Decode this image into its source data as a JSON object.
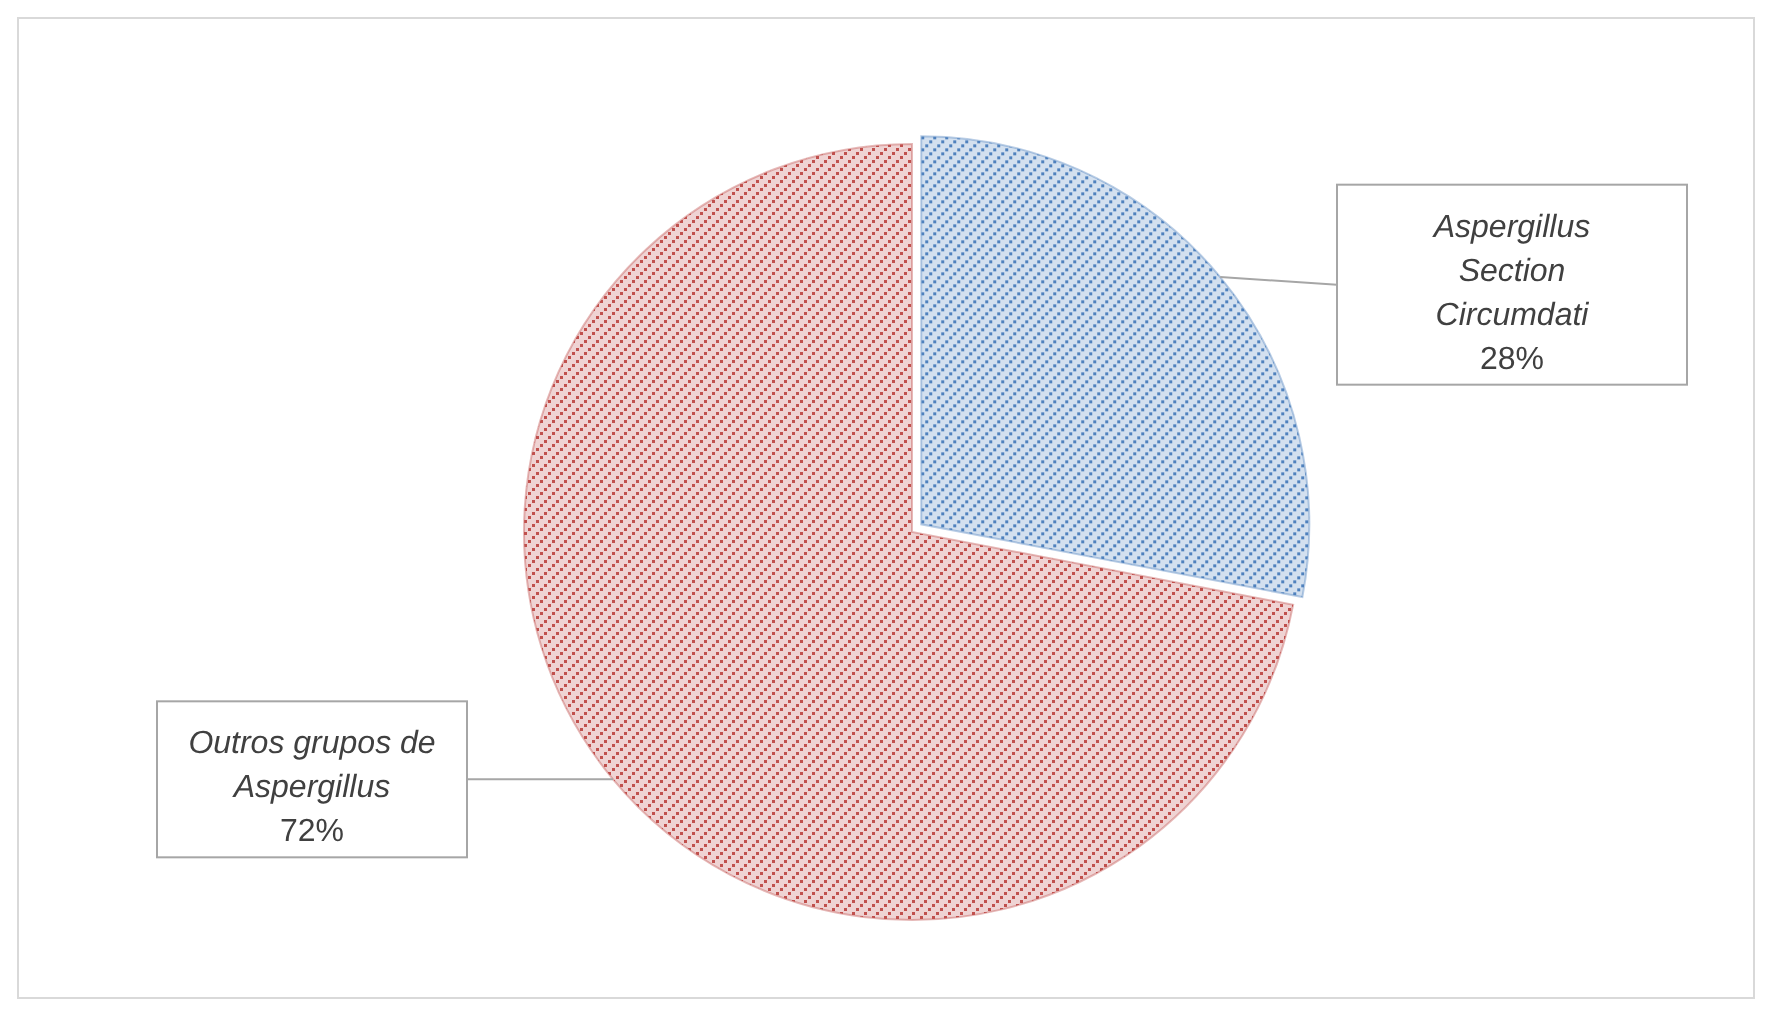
{
  "chart_data": {
    "type": "pie",
    "categories": [
      "Aspergillus Section Circumdati",
      "Outros grupos de Aspergillus"
    ],
    "values": [
      28,
      72
    ],
    "colors": [
      "#4f81bd",
      "#c0504d"
    ],
    "value_labels": [
      "28%",
      "72%"
    ],
    "legend": false
  }
}
